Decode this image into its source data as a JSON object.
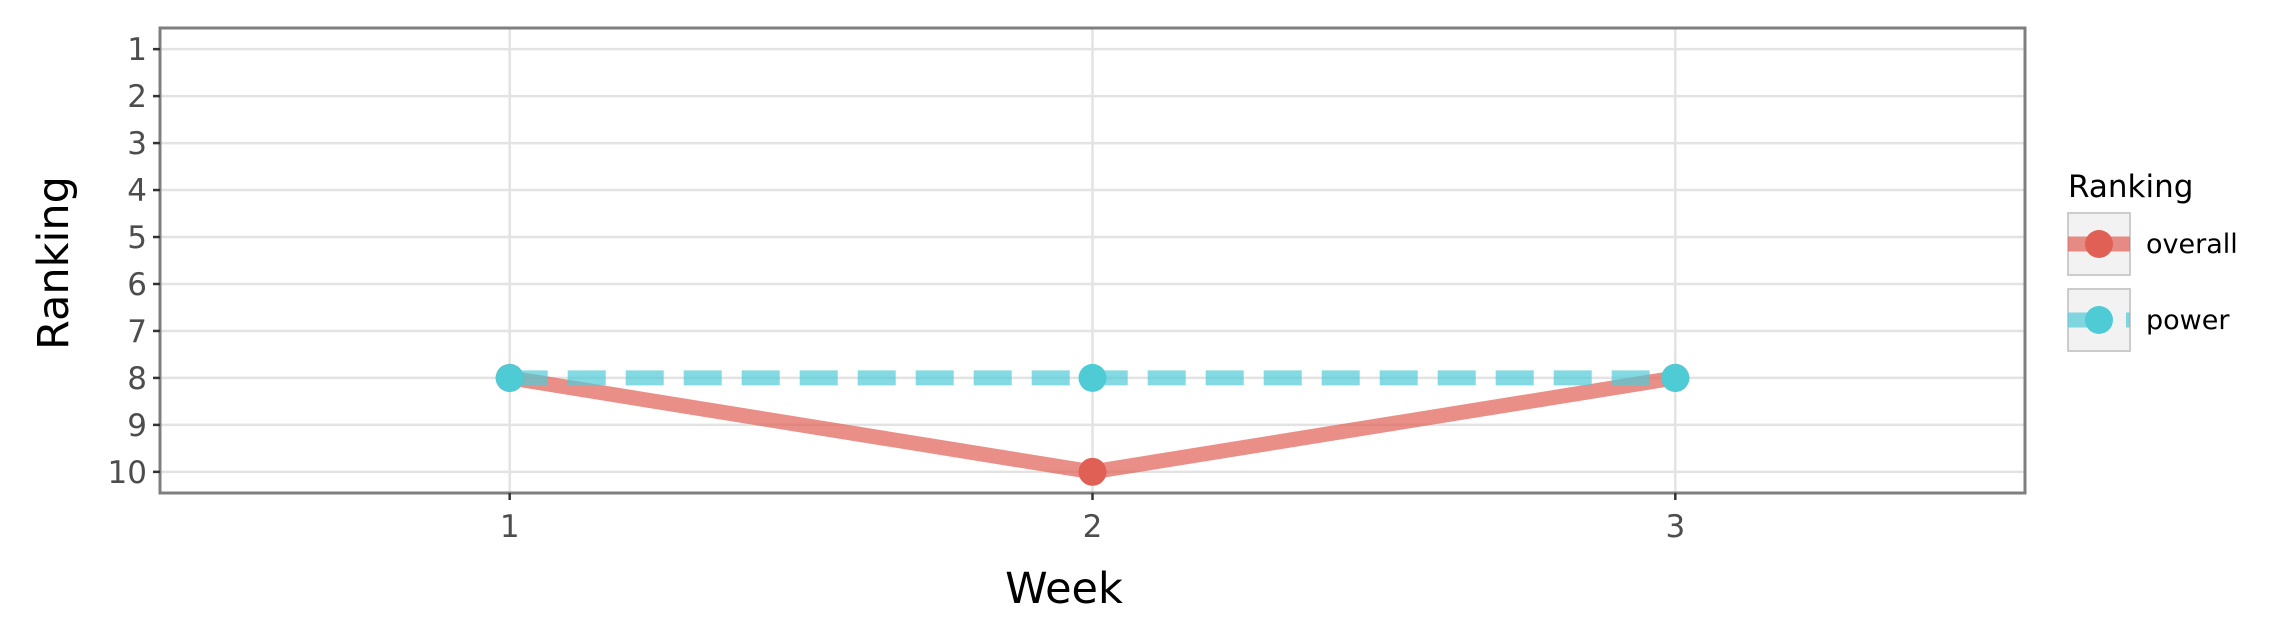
{
  "chart_data": {
    "type": "line",
    "xlabel": "Week",
    "ylabel": "Ranking",
    "x": [
      1,
      2,
      3
    ],
    "x_ticks": [
      "1",
      "2",
      "3"
    ],
    "y_ticks": [
      "1",
      "2",
      "3",
      "4",
      "5",
      "6",
      "7",
      "8",
      "9",
      "10"
    ],
    "xlim": [
      0.4,
      3.6
    ],
    "ylim": [
      10.45,
      0.55
    ],
    "y_reversed": true,
    "grid": true,
    "legend": {
      "title": "Ranking",
      "placement": "right"
    },
    "series": [
      {
        "name": "overall",
        "values": [
          8,
          10,
          8
        ],
        "color": "#e06055",
        "line_style": "solid"
      },
      {
        "name": "power",
        "values": [
          8,
          8,
          8
        ],
        "color": "#4fcbd5",
        "line_style": "dashed"
      }
    ]
  }
}
